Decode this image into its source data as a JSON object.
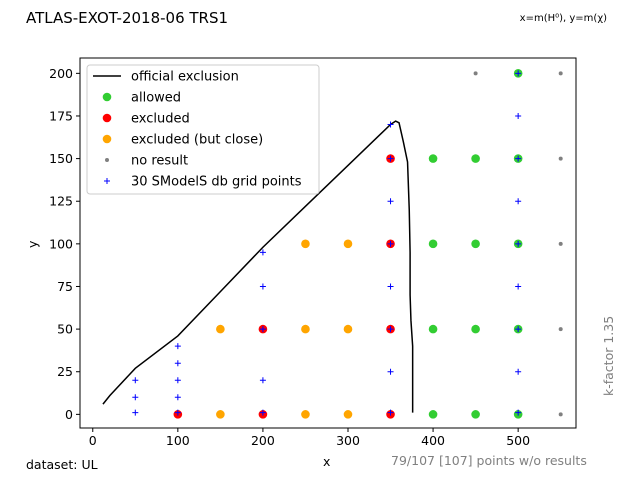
{
  "header": {
    "title": "ATLAS-EXOT-2018-06 TRS1",
    "axes_note": "x=m(H⁰), y=m(χ)"
  },
  "footer": {
    "dataset": "dataset: UL",
    "points_note": "79/107 [107] points w/o results",
    "kfactor": "k-factor 1.35"
  },
  "chart_data": {
    "type": "scatter",
    "title": "ATLAS-EXOT-2018-06 TRS1",
    "xlabel": "x",
    "ylabel": "y",
    "xlim": [
      -15,
      568
    ],
    "ylim": [
      -8,
      209
    ],
    "xticks": [
      0,
      100,
      200,
      300,
      400,
      500
    ],
    "yticks": [
      0,
      25,
      50,
      75,
      100,
      125,
      150,
      175,
      200
    ],
    "grid": false,
    "legend_position": "top-left",
    "colors": {
      "official": "#000000",
      "allowed": "#32cd32",
      "excluded": "#ff0000",
      "close": "#ffa500",
      "no_result": "#808080",
      "grid_points": "#0000ff"
    },
    "legend": [
      {
        "label": "official exclusion",
        "kind": "line",
        "color": "#000000"
      },
      {
        "label": "allowed",
        "kind": "dot",
        "color": "#32cd32"
      },
      {
        "label": "excluded",
        "kind": "dot",
        "color": "#ff0000"
      },
      {
        "label": "excluded (but close)",
        "kind": "dot",
        "color": "#ffa500"
      },
      {
        "label": "no result",
        "kind": "small-dot",
        "color": "#808080"
      },
      {
        "label": "30 SModelS db grid points",
        "kind": "plus",
        "color": "#0000ff"
      }
    ],
    "official_exclusion": [
      [
        12,
        6
      ],
      [
        20,
        11
      ],
      [
        50,
        27
      ],
      [
        100,
        46
      ],
      [
        150,
        72
      ],
      [
        200,
        98
      ],
      [
        250,
        122
      ],
      [
        300,
        146
      ],
      [
        350,
        170
      ],
      [
        356,
        172
      ],
      [
        360,
        171
      ],
      [
        365,
        160
      ],
      [
        370,
        148
      ],
      [
        372,
        120
      ],
      [
        373,
        95
      ],
      [
        373,
        70
      ],
      [
        374,
        55
      ],
      [
        376,
        40
      ],
      [
        376,
        1
      ]
    ],
    "allowed": [
      [
        400,
        0
      ],
      [
        450,
        0
      ],
      [
        500,
        0
      ],
      [
        400,
        50
      ],
      [
        450,
        50
      ],
      [
        500,
        50
      ],
      [
        400,
        100
      ],
      [
        450,
        100
      ],
      [
        500,
        100
      ],
      [
        400,
        150
      ],
      [
        450,
        150
      ],
      [
        500,
        150
      ],
      [
        500,
        200
      ]
    ],
    "excluded": [
      [
        100,
        0
      ],
      [
        200,
        0
      ],
      [
        350,
        0
      ],
      [
        200,
        50
      ],
      [
        350,
        50
      ],
      [
        350,
        100
      ],
      [
        350,
        150
      ]
    ],
    "excluded_close": [
      [
        150,
        0
      ],
      [
        250,
        0
      ],
      [
        300,
        0
      ],
      [
        150,
        50
      ],
      [
        250,
        50
      ],
      [
        300,
        50
      ],
      [
        250,
        100
      ],
      [
        300,
        100
      ]
    ],
    "no_result": [
      [
        550,
        0
      ],
      [
        550,
        50
      ],
      [
        550,
        100
      ],
      [
        550,
        150
      ],
      [
        450,
        200
      ],
      [
        550,
        200
      ]
    ],
    "grid_points": [
      [
        50,
        1
      ],
      [
        50,
        10
      ],
      [
        50,
        20
      ],
      [
        100,
        1
      ],
      [
        100,
        10
      ],
      [
        100,
        20
      ],
      [
        100,
        30
      ],
      [
        100,
        40
      ],
      [
        200,
        1
      ],
      [
        200,
        20
      ],
      [
        200,
        50
      ],
      [
        200,
        75
      ],
      [
        200,
        95
      ],
      [
        350,
        1
      ],
      [
        350,
        25
      ],
      [
        350,
        50
      ],
      [
        350,
        75
      ],
      [
        350,
        100
      ],
      [
        350,
        125
      ],
      [
        350,
        150
      ],
      [
        350,
        170
      ],
      [
        500,
        1
      ],
      [
        500,
        25
      ],
      [
        500,
        50
      ],
      [
        500,
        75
      ],
      [
        500,
        100
      ],
      [
        500,
        125
      ],
      [
        500,
        150
      ],
      [
        500,
        175
      ],
      [
        500,
        200
      ]
    ]
  }
}
